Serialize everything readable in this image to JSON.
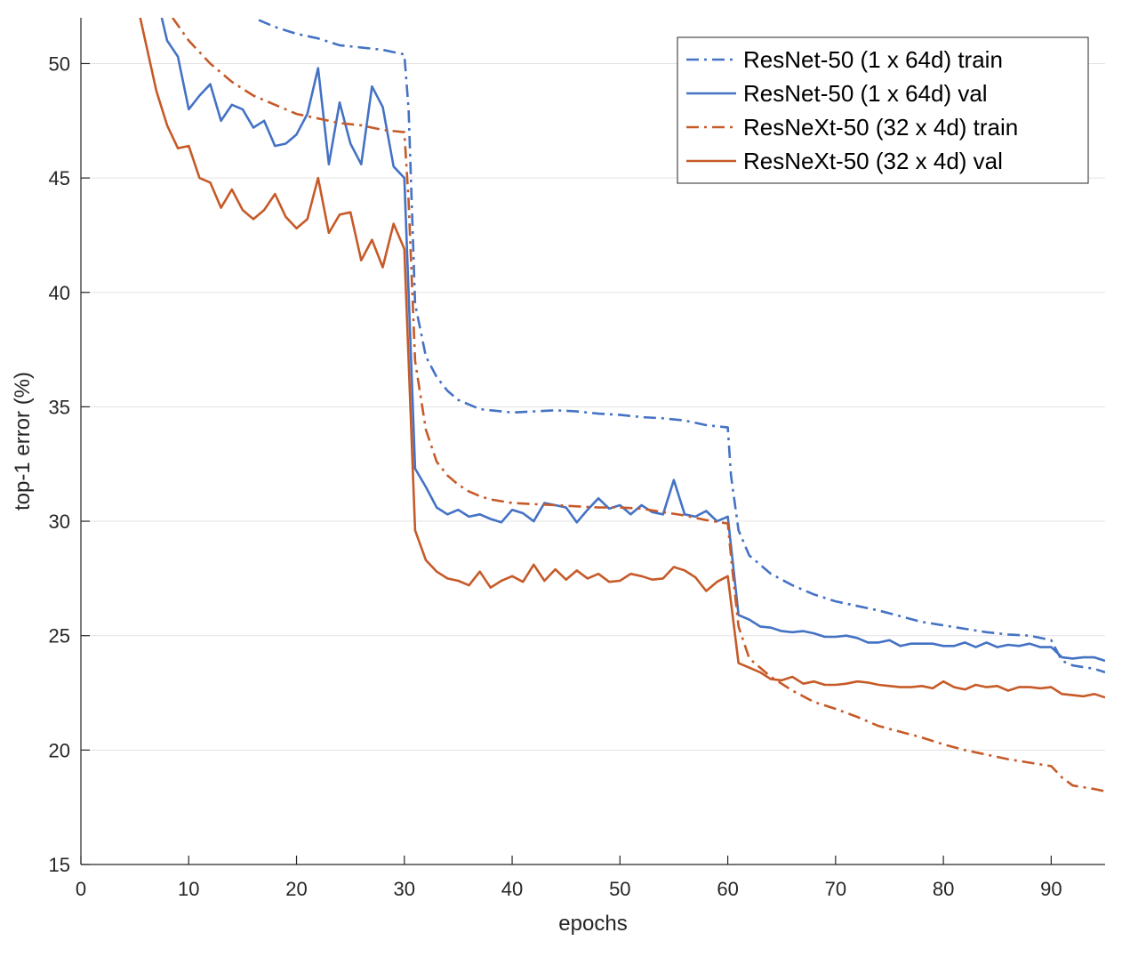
{
  "chart_data": {
    "type": "line",
    "title": "",
    "xlabel": "epochs",
    "ylabel": "top-1 error (%)",
    "xlim": [
      0,
      95
    ],
    "ylim": [
      15,
      52
    ],
    "xticks": [
      0,
      10,
      20,
      30,
      40,
      50,
      60,
      70,
      80,
      90
    ],
    "yticks": [
      15,
      20,
      25,
      30,
      35,
      40,
      45,
      50
    ],
    "grid": "horizontal",
    "legend_position": "top-right",
    "series": [
      {
        "name": "ResNet-50 (1 x 64d) train",
        "color": "#4472C4",
        "line_style": "dash-dot",
        "x": [
          16.5,
          18,
          20,
          22,
          24,
          26,
          28,
          30,
          30.4,
          31,
          32,
          33,
          34,
          35,
          36,
          37,
          38,
          40,
          42,
          44,
          46,
          48,
          50,
          52,
          54,
          56,
          58,
          60,
          60.3,
          61,
          62,
          64,
          66,
          68,
          70,
          72,
          74,
          76,
          78,
          80,
          82,
          84,
          86,
          88,
          90,
          91,
          92,
          94,
          95
        ],
        "y": [
          51.9,
          51.6,
          51.3,
          51.1,
          50.8,
          50.7,
          50.6,
          50.4,
          48,
          39.5,
          37.2,
          36.3,
          35.7,
          35.3,
          35.1,
          34.9,
          34.85,
          34.75,
          34.8,
          34.85,
          34.8,
          34.7,
          34.65,
          34.55,
          34.5,
          34.4,
          34.2,
          34.1,
          32,
          29.6,
          28.5,
          27.7,
          27.2,
          26.8,
          26.5,
          26.3,
          26.1,
          25.85,
          25.6,
          25.45,
          25.3,
          25.15,
          25.05,
          25.0,
          24.8,
          23.9,
          23.7,
          23.55,
          23.4
        ]
      },
      {
        "name": "ResNet-50 (1 x 64d) val",
        "color": "#4472C4",
        "line_style": "solid",
        "x": [
          7.5,
          8,
          9,
          10,
          11,
          12,
          13,
          14,
          15,
          16,
          17,
          18,
          19,
          20,
          21,
          22,
          23,
          24,
          25,
          26,
          27,
          28,
          29,
          30,
          31,
          32,
          33,
          34,
          35,
          36,
          37,
          38,
          39,
          40,
          41,
          42,
          43,
          44,
          45,
          46,
          47,
          48,
          49,
          50,
          51,
          52,
          53,
          54,
          55,
          56,
          57,
          58,
          59,
          60,
          61,
          62,
          63,
          64,
          65,
          66,
          67,
          68,
          69,
          70,
          71,
          72,
          73,
          74,
          75,
          76,
          77,
          78,
          79,
          80,
          81,
          82,
          83,
          84,
          85,
          86,
          87,
          88,
          89,
          90,
          91,
          92,
          93,
          94,
          95
        ],
        "y": [
          52,
          51,
          50.3,
          48,
          48.6,
          49.1,
          47.5,
          48.2,
          48,
          47.2,
          47.5,
          46.4,
          46.5,
          46.9,
          47.8,
          49.8,
          45.6,
          48.3,
          46.5,
          45.6,
          49,
          48.1,
          45.5,
          45,
          32.3,
          31.5,
          30.6,
          30.3,
          30.5,
          30.2,
          30.3,
          30.1,
          29.95,
          30.5,
          30.35,
          30,
          30.8,
          30.7,
          30.6,
          29.95,
          30.5,
          31,
          30.55,
          30.7,
          30.3,
          30.7,
          30.4,
          30.3,
          31.8,
          30.3,
          30.2,
          30.45,
          30,
          30.2,
          25.9,
          25.7,
          25.4,
          25.35,
          25.2,
          25.15,
          25.2,
          25.1,
          24.95,
          24.95,
          25.0,
          24.9,
          24.7,
          24.7,
          24.8,
          24.55,
          24.65,
          24.65,
          24.65,
          24.55,
          24.55,
          24.7,
          24.5,
          24.7,
          24.5,
          24.6,
          24.55,
          24.65,
          24.5,
          24.5,
          24.05,
          24.0,
          24.05,
          24.05,
          23.9
        ]
      },
      {
        "name": "ResNeXt-50 (32 x 4d) train",
        "color": "#C65A28",
        "line_style": "dash-dot",
        "x": [
          8.5,
          10,
          12,
          14,
          16,
          18,
          20,
          22,
          24,
          26,
          28,
          30,
          30.4,
          31,
          32,
          33,
          34,
          35,
          36,
          37,
          38,
          40,
          42,
          44,
          46,
          48,
          50,
          52,
          54,
          56,
          58,
          60,
          60.4,
          61,
          62,
          63,
          64,
          66,
          68,
          70,
          72,
          74,
          76,
          78,
          80,
          82,
          84,
          86,
          88,
          90,
          91,
          92,
          94,
          95
        ],
        "y": [
          52,
          51,
          50,
          49.2,
          48.6,
          48.2,
          47.8,
          47.6,
          47.4,
          47.3,
          47.1,
          47,
          44,
          37,
          34,
          32.6,
          32.0,
          31.6,
          31.3,
          31.1,
          30.95,
          30.8,
          30.75,
          30.7,
          30.65,
          30.6,
          30.6,
          30.55,
          30.4,
          30.25,
          30.05,
          29.9,
          28,
          25.4,
          24,
          23.6,
          23.2,
          22.6,
          22.1,
          21.8,
          21.45,
          21.05,
          20.8,
          20.55,
          20.25,
          20.0,
          19.8,
          19.6,
          19.45,
          19.3,
          18.8,
          18.45,
          18.3,
          18.2
        ]
      },
      {
        "name": "ResNeXt-50 (32 x 4d) val",
        "color": "#C65A28",
        "line_style": "solid",
        "x": [
          5.5,
          7,
          8,
          9,
          10,
          11,
          12,
          13,
          14,
          15,
          16,
          17,
          18,
          19,
          20,
          21,
          22,
          23,
          24,
          25,
          26,
          27,
          28,
          29,
          30,
          31,
          32,
          33,
          34,
          35,
          36,
          37,
          38,
          39,
          40,
          41,
          42,
          43,
          44,
          45,
          46,
          47,
          48,
          49,
          50,
          51,
          52,
          53,
          54,
          55,
          56,
          57,
          58,
          59,
          60,
          61,
          62,
          63,
          64,
          65,
          66,
          67,
          68,
          69,
          70,
          71,
          72,
          73,
          74,
          75,
          76,
          77,
          78,
          79,
          80,
          81,
          82,
          83,
          84,
          85,
          86,
          87,
          88,
          89,
          90,
          91,
          92,
          93,
          94,
          95
        ],
        "y": [
          52,
          48.8,
          47.3,
          46.3,
          46.4,
          45,
          44.8,
          43.7,
          44.5,
          43.6,
          43.2,
          43.6,
          44.3,
          43.3,
          42.8,
          43.2,
          45,
          42.6,
          43.4,
          43.5,
          41.4,
          42.3,
          41.1,
          43,
          41.9,
          29.6,
          28.3,
          27.8,
          27.5,
          27.4,
          27.2,
          27.8,
          27.1,
          27.4,
          27.6,
          27.35,
          28.1,
          27.4,
          27.9,
          27.45,
          27.85,
          27.5,
          27.7,
          27.35,
          27.4,
          27.7,
          27.6,
          27.45,
          27.5,
          28,
          27.85,
          27.55,
          26.95,
          27.35,
          27.6,
          23.8,
          23.6,
          23.4,
          23.1,
          23.05,
          23.2,
          22.9,
          23.0,
          22.85,
          22.85,
          22.9,
          23.0,
          22.95,
          22.85,
          22.8,
          22.75,
          22.75,
          22.8,
          22.7,
          23.0,
          22.75,
          22.65,
          22.85,
          22.75,
          22.8,
          22.6,
          22.75,
          22.75,
          22.7,
          22.75,
          22.45,
          22.4,
          22.35,
          22.45,
          22.3
        ]
      }
    ]
  }
}
